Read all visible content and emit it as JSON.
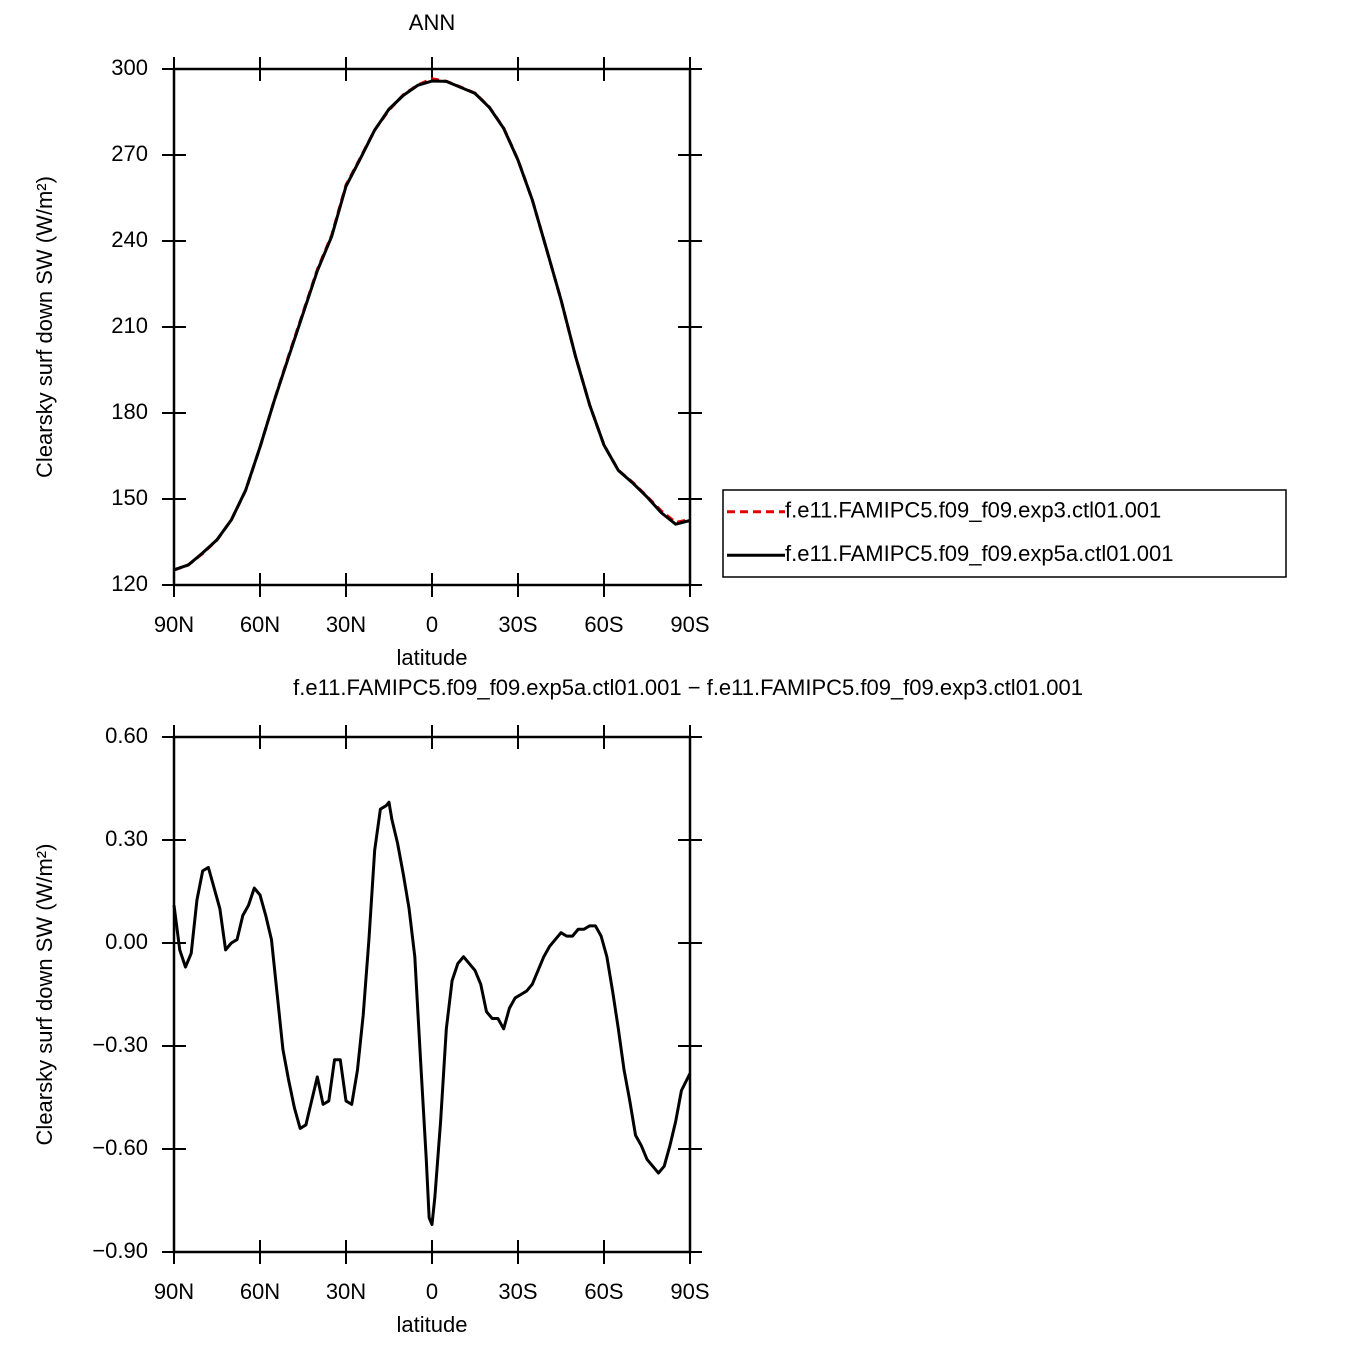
{
  "chart_data": [
    {
      "type": "line",
      "title": "ANN",
      "xlabel": "latitude",
      "ylabel": "Clearsky surf down SW (W/m²)",
      "x": [
        90,
        85,
        80,
        75,
        70,
        65,
        60,
        55,
        50,
        45,
        40,
        35,
        30,
        25,
        20,
        15,
        10,
        5,
        0,
        -5,
        -10,
        -15,
        -20,
        -25,
        -30,
        -35,
        -40,
        -45,
        -50,
        -55,
        -60,
        -65,
        -70,
        -75,
        -80,
        -85,
        -90
      ],
      "series": [
        {
          "name": "f.e11.FAMIPC5.f09_f09.exp3.ctl01.001",
          "color": "#e00000",
          "dashed": true,
          "values": [
            125.2,
            127,
            131,
            135.7,
            142.7,
            153,
            168,
            184.5,
            200,
            215,
            230,
            242,
            259.5,
            269,
            278.7,
            285.7,
            291,
            294.4,
            296.6,
            295.7,
            293.7,
            291.6,
            286.7,
            279.4,
            268.3,
            254.3,
            237,
            219.5,
            200,
            182.8,
            168.8,
            160,
            155.8,
            150.9,
            145.8,
            141.8,
            142.9
          ]
        },
        {
          "name": "f.e11.FAMIPC5.f09_f09.exp5a.ctl01.001",
          "color": "#000000",
          "dashed": false,
          "values": [
            125.3,
            127,
            131.2,
            135.8,
            142.7,
            153.1,
            168.1,
            184.4,
            199.6,
            214.6,
            229.6,
            241.6,
            259.1,
            268.7,
            278.7,
            286,
            290.8,
            294.3,
            295.8,
            295.7,
            293.6,
            291.5,
            286.6,
            279.3,
            268.2,
            254.3,
            237,
            219.5,
            200,
            182.8,
            168.8,
            160,
            155.6,
            150.7,
            145.2,
            141.2,
            142.5
          ]
        }
      ],
      "xlim": [
        90,
        -90
      ],
      "xticks": [
        {
          "value": 90,
          "label": "90N"
        },
        {
          "value": 60,
          "label": "60N"
        },
        {
          "value": 30,
          "label": "30N"
        },
        0,
        {
          "value": -30,
          "label": "30S"
        },
        {
          "value": -60,
          "label": "60S"
        },
        {
          "value": -90,
          "label": "90S"
        }
      ],
      "ylim": [
        120,
        300
      ],
      "yticks": [
        120,
        150,
        180,
        210,
        240,
        270,
        300
      ],
      "legend": "right"
    },
    {
      "type": "line",
      "title": "f.e11.FAMIPC5.f09_f09.exp5a.ctl01.001 − f.e11.FAMIPC5.f09_f09.exp3.ctl01.001",
      "xlabel": "latitude",
      "ylabel": "Clearsky surf down SW (W/m²)",
      "x": [
        90,
        88,
        86,
        84,
        82,
        80,
        78,
        76,
        74,
        72,
        70,
        68,
        66,
        64,
        62,
        60,
        58,
        56,
        54,
        52,
        50,
        48,
        46,
        44,
        42,
        40,
        38,
        36,
        34,
        32,
        30,
        28,
        26,
        24,
        22,
        20,
        18,
        16,
        15,
        14,
        12,
        10,
        8,
        6,
        4,
        2,
        1,
        0,
        -1,
        -3,
        -5,
        -7,
        -9,
        -11,
        -13,
        -15,
        -17,
        -19,
        -21,
        -23,
        -25,
        -27,
        -29,
        -31,
        -33,
        -35,
        -37,
        -39,
        -41,
        -43,
        -45,
        -47,
        -49,
        -51,
        -53,
        -55,
        -57,
        -59,
        -61,
        -63,
        -65,
        -67,
        -69,
        -71,
        -73,
        -75,
        -77,
        -79,
        -81,
        -83,
        -85,
        -87,
        -90
      ],
      "values": [
        0.11,
        -0.02,
        -0.07,
        -0.03,
        0.125,
        0.21,
        0.22,
        0.16,
        0.1,
        -0.02,
        0.0,
        0.01,
        0.08,
        0.11,
        0.16,
        0.14,
        0.08,
        0.01,
        -0.15,
        -0.31,
        -0.4,
        -0.48,
        -0.54,
        -0.53,
        -0.46,
        -0.39,
        -0.47,
        -0.46,
        -0.34,
        -0.34,
        -0.46,
        -0.47,
        -0.37,
        -0.21,
        0.01,
        0.27,
        0.39,
        0.4,
        0.41,
        0.36,
        0.29,
        0.2,
        0.1,
        -0.04,
        -0.34,
        -0.63,
        -0.8,
        -0.82,
        -0.74,
        -0.52,
        -0.25,
        -0.11,
        -0.06,
        -0.04,
        -0.06,
        -0.08,
        -0.12,
        -0.2,
        -0.22,
        -0.22,
        -0.25,
        -0.19,
        -0.16,
        -0.15,
        -0.14,
        -0.12,
        -0.08,
        -0.04,
        -0.01,
        0.01,
        0.03,
        0.02,
        0.02,
        0.04,
        0.04,
        0.05,
        0.05,
        0.02,
        -0.04,
        -0.14,
        -0.25,
        -0.37,
        -0.46,
        -0.56,
        -0.59,
        -0.63,
        -0.65,
        -0.67,
        -0.65,
        -0.59,
        -0.52,
        -0.43,
        -0.38
      ],
      "color": "#000000",
      "xlim": [
        90,
        -90
      ],
      "xticks": [
        {
          "value": 90,
          "label": "90N"
        },
        {
          "value": 60,
          "label": "60N"
        },
        {
          "value": 30,
          "label": "30N"
        },
        0,
        {
          "value": -30,
          "label": "30S"
        },
        {
          "value": -60,
          "label": "60S"
        },
        {
          "value": -90,
          "label": "90S"
        }
      ],
      "ylim": [
        -0.9,
        0.6
      ],
      "yticks": [
        {
          "value": -0.9,
          "label": "−0.90"
        },
        {
          "value": -0.6,
          "label": "−0.60"
        },
        {
          "value": -0.3,
          "label": "−0.30"
        },
        {
          "value": 0,
          "label": "0.00"
        },
        {
          "value": 0.3,
          "label": "0.30"
        },
        {
          "value": 0.6,
          "label": "0.60"
        }
      ]
    }
  ]
}
